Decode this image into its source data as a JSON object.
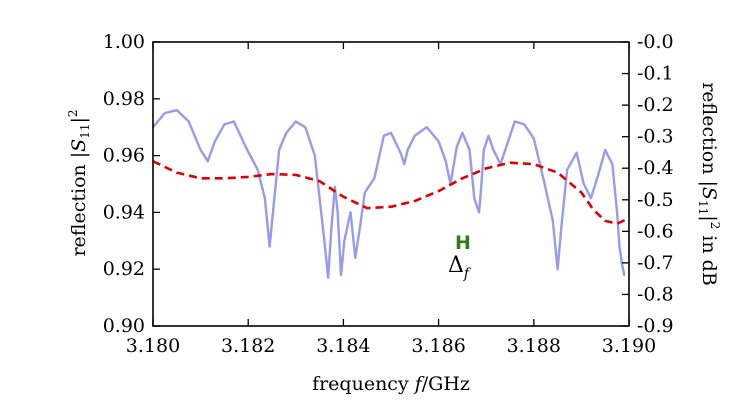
{
  "chart_data": {
    "type": "line",
    "title": "",
    "xlabel": {
      "pre": "frequency ",
      "var": "f",
      "post": "/GHz"
    },
    "ylabel_left": {
      "pre": "reflection |",
      "var": "S",
      "sub": "11",
      "post": "|",
      "sup": "2"
    },
    "ylabel_right": {
      "pre": "reflection |",
      "var": "S",
      "sub": "11",
      "post": "|",
      "sup": "2",
      "tail": " in dB"
    },
    "xlim": [
      3.18,
      3.19
    ],
    "ylim": [
      0.9,
      1.0
    ],
    "y2lim": [
      -0.9,
      0.0
    ],
    "xticks": [
      3.18,
      3.182,
      3.184,
      3.186,
      3.188,
      3.19
    ],
    "xtick_labels": [
      "3.180",
      "3.182",
      "3.184",
      "3.186",
      "3.188",
      "3.190"
    ],
    "yticks": [
      0.9,
      0.92,
      0.94,
      0.96,
      0.98,
      1.0
    ],
    "ytick_labels": [
      "0.90",
      "0.92",
      "0.94",
      "0.96",
      "0.98",
      "1.00"
    ],
    "y2ticks": [
      -0.9,
      -0.8,
      -0.7,
      -0.6,
      -0.5,
      -0.4,
      -0.3,
      -0.2,
      -0.1,
      0.0
    ],
    "y2tick_labels": [
      "-0.9",
      "-0.8",
      "-0.7",
      "-0.6",
      "-0.5",
      "-0.4",
      "-0.3",
      "-0.2",
      "-0.1",
      "-0.0"
    ],
    "grid": false,
    "series": [
      {
        "style": "solid",
        "color": "#9999ee",
        "x": [
          3.18,
          3.18025,
          3.1805,
          3.18075,
          3.181,
          3.18115,
          3.1813,
          3.1815,
          3.1817,
          3.18195,
          3.1822,
          3.18235,
          3.18245,
          3.18255,
          3.18265,
          3.1828,
          3.183,
          3.1832,
          3.1834,
          3.1836,
          3.18368,
          3.18375,
          3.18382,
          3.18388,
          3.18395,
          3.18402,
          3.18415,
          3.18425,
          3.18435,
          3.18445,
          3.18465,
          3.18485,
          3.185,
          3.1852,
          3.18528,
          3.18535,
          3.1855,
          3.18575,
          3.186,
          3.18615,
          3.18625,
          3.18638,
          3.1865,
          3.18665,
          3.18675,
          3.18685,
          3.1869,
          3.18695,
          3.18705,
          3.18715,
          3.1873,
          3.18748,
          3.1876,
          3.1878,
          3.188,
          3.1882,
          3.1884,
          3.1885,
          3.18858,
          3.1887,
          3.1889,
          3.18905,
          3.1892,
          3.18935,
          3.1895,
          3.18965,
          3.18975,
          3.1898,
          3.18985,
          3.1899
        ],
        "y": [
          0.97,
          0.975,
          0.976,
          0.972,
          0.962,
          0.958,
          0.965,
          0.971,
          0.972,
          0.963,
          0.955,
          0.945,
          0.928,
          0.945,
          0.962,
          0.968,
          0.972,
          0.97,
          0.96,
          0.93,
          0.917,
          0.935,
          0.949,
          0.94,
          0.918,
          0.93,
          0.94,
          0.924,
          0.935,
          0.947,
          0.952,
          0.967,
          0.968,
          0.961,
          0.957,
          0.962,
          0.967,
          0.97,
          0.965,
          0.958,
          0.95,
          0.963,
          0.968,
          0.962,
          0.945,
          0.94,
          0.95,
          0.962,
          0.967,
          0.962,
          0.957,
          0.966,
          0.972,
          0.971,
          0.966,
          0.952,
          0.937,
          0.92,
          0.935,
          0.955,
          0.961,
          0.95,
          0.945,
          0.953,
          0.962,
          0.957,
          0.94,
          0.928,
          0.922,
          0.918
        ]
      },
      {
        "style": "dashed",
        "color": "#e00000",
        "x": [
          3.18,
          3.1805,
          3.181,
          3.1815,
          3.182,
          3.1825,
          3.183,
          3.1835,
          3.184,
          3.1845,
          3.185,
          3.1855,
          3.186,
          3.1865,
          3.187,
          3.1875,
          3.188,
          3.1885,
          3.189,
          3.18925,
          3.1895,
          3.18975,
          3.19
        ],
        "y": [
          0.958,
          0.954,
          0.952,
          0.952,
          0.9525,
          0.9535,
          0.9532,
          0.951,
          0.9455,
          0.9415,
          0.942,
          0.944,
          0.9475,
          0.952,
          0.9555,
          0.9575,
          0.957,
          0.954,
          0.947,
          0.941,
          0.937,
          0.936,
          0.938
        ]
      }
    ],
    "annotations": {
      "marker": {
        "text": "H",
        "color": "#2e7d1a"
      },
      "delta": {
        "symbol": "Δ",
        "sub": "f"
      }
    }
  }
}
